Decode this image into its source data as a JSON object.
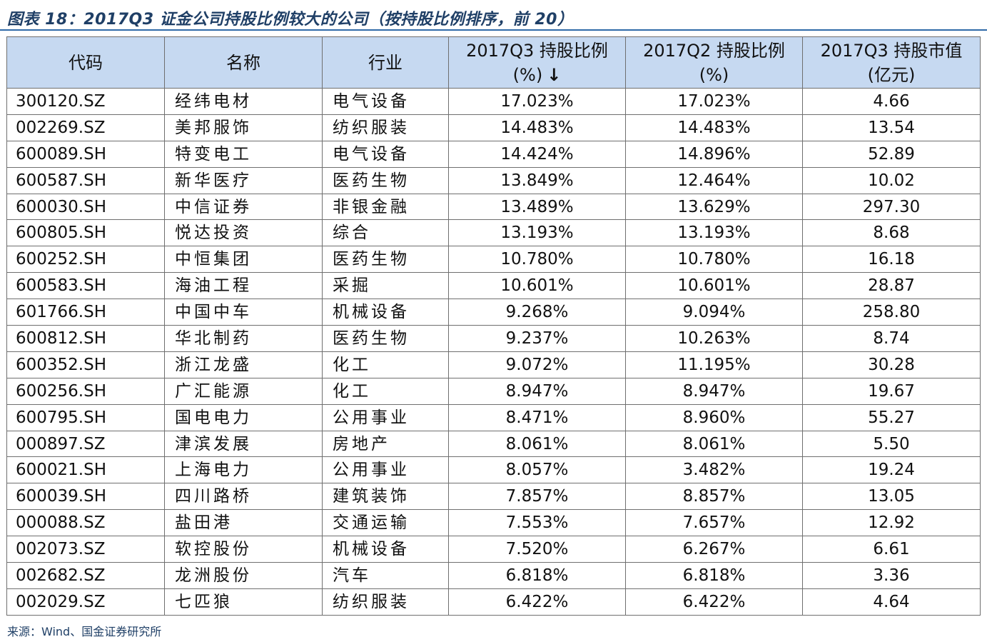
{
  "title": "图表 18：2017Q3 证金公司持股比例较大的公司（按持股比例排序，前 20）",
  "header": {
    "code": "代码",
    "name": "名称",
    "industry": "行业",
    "q3_ratio_line1": "2017Q3 持股比例",
    "q3_ratio_line2": "(%)",
    "q3_sort_arrow": "↓",
    "q2_ratio_line1": "2017Q2 持股比例",
    "q2_ratio_line2": "(%)",
    "q3_value_line1": "2017Q3 持股市值",
    "q3_value_line2": "(亿元)"
  },
  "sort_icon": "down-arrow-icon",
  "rows": [
    {
      "code": "300120.SZ",
      "name": "经纬电材",
      "industry": "电气设备",
      "q3": "17.023%",
      "q2": "17.023%",
      "value": "4.66"
    },
    {
      "code": "002269.SZ",
      "name": "美邦服饰",
      "industry": "纺织服装",
      "q3": "14.483%",
      "q2": "14.483%",
      "value": "13.54"
    },
    {
      "code": "600089.SH",
      "name": "特变电工",
      "industry": "电气设备",
      "q3": "14.424%",
      "q2": "14.896%",
      "value": "52.89"
    },
    {
      "code": "600587.SH",
      "name": "新华医疗",
      "industry": "医药生物",
      "q3": "13.849%",
      "q2": "12.464%",
      "value": "10.02"
    },
    {
      "code": "600030.SH",
      "name": "中信证券",
      "industry": "非银金融",
      "q3": "13.489%",
      "q2": "13.629%",
      "value": "297.30"
    },
    {
      "code": "600805.SH",
      "name": "悦达投资",
      "industry": "综合",
      "q3": "13.193%",
      "q2": "13.193%",
      "value": "8.68"
    },
    {
      "code": "600252.SH",
      "name": "中恒集团",
      "industry": "医药生物",
      "q3": "10.780%",
      "q2": "10.780%",
      "value": "16.18"
    },
    {
      "code": "600583.SH",
      "name": "海油工程",
      "industry": "采掘",
      "q3": "10.601%",
      "q2": "10.601%",
      "value": "28.87"
    },
    {
      "code": "601766.SH",
      "name": "中国中车",
      "industry": "机械设备",
      "q3": "9.268%",
      "q2": "9.094%",
      "value": "258.80"
    },
    {
      "code": "600812.SH",
      "name": "华北制药",
      "industry": "医药生物",
      "q3": "9.237%",
      "q2": "10.263%",
      "value": "8.74"
    },
    {
      "code": "600352.SH",
      "name": "浙江龙盛",
      "industry": "化工",
      "q3": "9.072%",
      "q2": "11.195%",
      "value": "30.28"
    },
    {
      "code": "600256.SH",
      "name": "广汇能源",
      "industry": "化工",
      "q3": "8.947%",
      "q2": "8.947%",
      "value": "19.67"
    },
    {
      "code": "600795.SH",
      "name": "国电电力",
      "industry": "公用事业",
      "q3": "8.471%",
      "q2": "8.960%",
      "value": "55.27"
    },
    {
      "code": "000897.SZ",
      "name": "津滨发展",
      "industry": "房地产",
      "q3": "8.061%",
      "q2": "8.061%",
      "value": "5.50"
    },
    {
      "code": "600021.SH",
      "name": "上海电力",
      "industry": "公用事业",
      "q3": "8.057%",
      "q2": "3.482%",
      "value": "19.24"
    },
    {
      "code": "600039.SH",
      "name": "四川路桥",
      "industry": "建筑装饰",
      "q3": "7.857%",
      "q2": "8.857%",
      "value": "13.05"
    },
    {
      "code": "000088.SZ",
      "name": "盐田港",
      "industry": "交通运输",
      "q3": "7.553%",
      "q2": "7.657%",
      "value": "12.92"
    },
    {
      "code": "002073.SZ",
      "name": "软控股份",
      "industry": "机械设备",
      "q3": "7.520%",
      "q2": "6.267%",
      "value": "6.61"
    },
    {
      "code": "002682.SZ",
      "name": "龙洲股份",
      "industry": "汽车",
      "q3": "6.818%",
      "q2": "6.818%",
      "value": "3.36"
    },
    {
      "code": "002029.SZ",
      "name": "七匹狼",
      "industry": "纺织服装",
      "q3": "6.422%",
      "q2": "6.422%",
      "value": "4.64"
    }
  ],
  "source": "来源：Wind、国金证券研究所"
}
